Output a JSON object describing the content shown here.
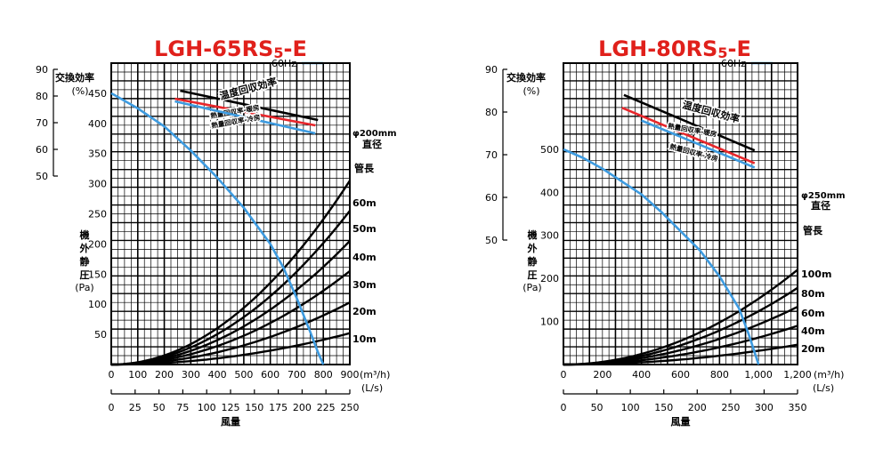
{
  "chart_data": [
    {
      "type": "line",
      "title": "LGH-65RS5-E",
      "title_main": "LGH-65RS",
      "title_sub": "5",
      "title_suffix": "-E",
      "legend": {
        "label": "60Hz",
        "color": "#3d9be0",
        "placement": "top-right"
      },
      "grid": true,
      "efficiency_axis": {
        "label": "交換効率",
        "unit": "(%)",
        "ticks": [
          "90",
          "80",
          "70",
          "60",
          "50"
        ],
        "ylim": [
          50,
          90
        ]
      },
      "pressure_axis": {
        "label": "機外静圧",
        "unit": "(Pa)",
        "ticks": [
          "450",
          "400",
          "350",
          "300",
          "250",
          "200",
          "150",
          "100",
          "50"
        ],
        "ylim": [
          0,
          500
        ]
      },
      "x_axis": {
        "unit": "(m³/h)",
        "ticks": [
          "0",
          "100",
          "200",
          "300",
          "400",
          "500",
          "600",
          "700",
          "800",
          "900"
        ],
        "xlim": [
          0,
          900
        ]
      },
      "x2_axis": {
        "unit": "(L/s)",
        "ticks": [
          "0",
          "25",
          "50",
          "75",
          "100",
          "125",
          "150",
          "175",
          "200",
          "225",
          "250"
        ],
        "xlim": [
          0,
          250
        ]
      },
      "x_label": "風量",
      "duct": {
        "diameter_label": "φ200mm",
        "diameter_title": "直径",
        "length_title": "管長"
      },
      "efficiency_series": [
        {
          "name": "温度回収効率",
          "color": "#000000",
          "x": [
            260,
            780
          ],
          "y": [
            82,
            71
          ]
        },
        {
          "name": "熱量回収率-暖房",
          "color": "#e8262b",
          "x": [
            240,
            770
          ],
          "y": [
            79,
            69
          ]
        },
        {
          "name": "熱量回収率-冷房",
          "color": "#3d9be0",
          "x": [
            240,
            770
          ],
          "y": [
            78,
            66
          ]
        }
      ],
      "fan_curve": {
        "name": "60Hz",
        "color": "#3d9be0",
        "x": [
          0,
          100,
          200,
          300,
          400,
          500,
          600,
          650,
          700,
          750,
          780,
          800
        ],
        "y": [
          450,
          425,
          395,
          355,
          310,
          260,
          200,
          160,
          110,
          55,
          20,
          0
        ]
      },
      "duct_curves": [
        {
          "name": "60m",
          "x": [
            0,
            900
          ],
          "y": [
            0,
            305
          ]
        },
        {
          "name": "50m",
          "x": [
            0,
            900
          ],
          "y": [
            0,
            255
          ]
        },
        {
          "name": "40m",
          "x": [
            0,
            900
          ],
          "y": [
            0,
            205
          ]
        },
        {
          "name": "30m",
          "x": [
            0,
            900
          ],
          "y": [
            0,
            155
          ]
        },
        {
          "name": "20m",
          "x": [
            0,
            900
          ],
          "y": [
            0,
            103
          ]
        },
        {
          "name": "10m",
          "x": [
            0,
            900
          ],
          "y": [
            0,
            52
          ]
        }
      ]
    },
    {
      "type": "line",
      "title": "LGH-80RS5-E",
      "title_main": "LGH-80RS",
      "title_sub": "5",
      "title_suffix": "-E",
      "legend": {
        "label": "60Hz",
        "color": "#3d9be0",
        "placement": "top-right"
      },
      "grid": true,
      "efficiency_axis": {
        "label": "交換効率",
        "unit": "(%)",
        "ticks": [
          "90",
          "80",
          "70",
          "60",
          "50"
        ],
        "ylim": [
          50,
          90
        ]
      },
      "pressure_axis": {
        "label": "機外静圧",
        "unit": "(Pa)",
        "ticks": [
          "500",
          "400",
          "300",
          "200",
          "100"
        ],
        "ylim": [
          0,
          700
        ]
      },
      "x_axis": {
        "unit": "(m³/h)",
        "ticks": [
          "0",
          "200",
          "400",
          "600",
          "800",
          "1,000",
          "1,200"
        ],
        "xlim": [
          0,
          1200
        ]
      },
      "x2_axis": {
        "unit": "(L/s)",
        "ticks": [
          "0",
          "50",
          "100",
          "150",
          "200",
          "250",
          "300",
          "350"
        ],
        "xlim": [
          0,
          350
        ]
      },
      "x_label": "風量",
      "duct": {
        "diameter_label": "φ250mm",
        "diameter_title": "直径",
        "length_title": "管長"
      },
      "efficiency_series": [
        {
          "name": "温度回収効率",
          "color": "#000000",
          "x": [
            310,
            980
          ],
          "y": [
            84,
            71
          ]
        },
        {
          "name": "熱量回収率-暖房",
          "color": "#e8262b",
          "x": [
            300,
            980
          ],
          "y": [
            81,
            68
          ]
        },
        {
          "name": "熱量回収率-冷房",
          "color": "#3d9be0",
          "x": [
            400,
            980
          ],
          "y": [
            78,
            67
          ]
        }
      ],
      "fan_curve": {
        "name": "60Hz",
        "color": "#3d9be0",
        "x": [
          0,
          100,
          200,
          300,
          400,
          500,
          600,
          700,
          800,
          900,
          950,
          1000
        ],
        "y": [
          500,
          480,
          455,
          425,
          395,
          355,
          310,
          265,
          205,
          130,
          70,
          0
        ]
      },
      "duct_curves": [
        {
          "name": "100m",
          "x": [
            0,
            1200
          ],
          "y": [
            0,
            220
          ]
        },
        {
          "name": "80m",
          "x": [
            0,
            1200
          ],
          "y": [
            0,
            178
          ]
        },
        {
          "name": "60m",
          "x": [
            0,
            1200
          ],
          "y": [
            0,
            134
          ]
        },
        {
          "name": "40m",
          "x": [
            0,
            1200
          ],
          "y": [
            0,
            90
          ]
        },
        {
          "name": "20m",
          "x": [
            0,
            1200
          ],
          "y": [
            0,
            46
          ]
        }
      ]
    }
  ]
}
